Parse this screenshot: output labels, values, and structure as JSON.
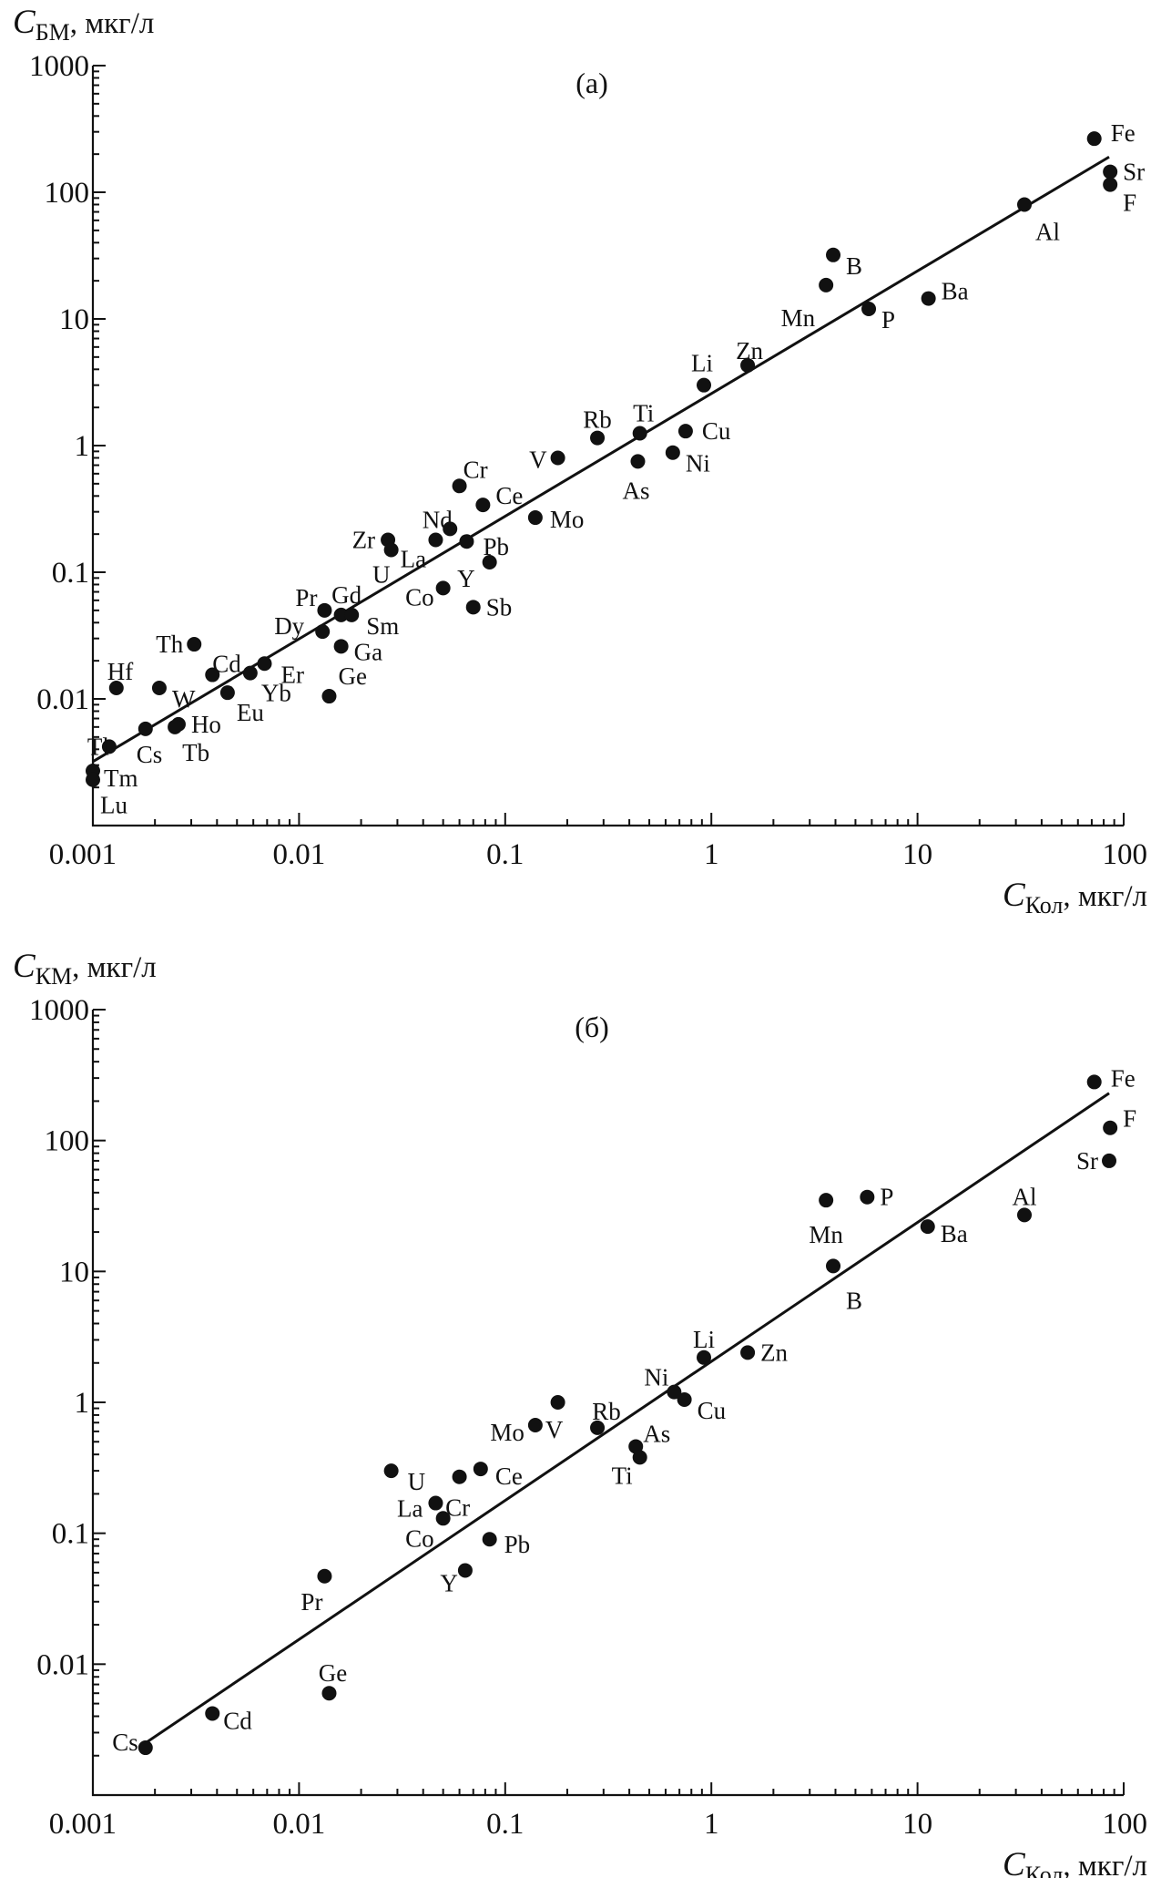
{
  "chart_data": [
    {
      "type": "scatter",
      "id": "a",
      "panel_label": "(а)",
      "scale": "log-log",
      "xlim": [
        0.001,
        100
      ],
      "ylim": [
        0.001,
        1000
      ],
      "x_ticks": [
        "0.001",
        "0.01",
        "0.1",
        "1",
        "10",
        "100"
      ],
      "y_ticks": [
        "0.01",
        "0.1",
        "1",
        "10",
        "100",
        "1000"
      ],
      "ylabel": {
        "symbol": "C",
        "sub": "БМ",
        "unit": ", мкг/л"
      },
      "xlabel": {
        "symbol": "C",
        "sub": "Кол",
        "unit": ", мкг/л"
      },
      "fit_line": {
        "x": [
          0.001,
          85
        ],
        "y": [
          0.0032,
          190
        ]
      },
      "points": [
        {
          "label": "Fe",
          "x": 72,
          "y": 265
        },
        {
          "label": "Sr",
          "x": 86,
          "y": 145
        },
        {
          "label": "F",
          "x": 86,
          "y": 115
        },
        {
          "label": "Al",
          "x": 33,
          "y": 80
        },
        {
          "label": "B",
          "x": 3.9,
          "y": 32
        },
        {
          "label": "Mn",
          "x": 3.6,
          "y": 18.5
        },
        {
          "label": "P",
          "x": 5.8,
          "y": 12
        },
        {
          "label": "Ba",
          "x": 11.3,
          "y": 14.5
        },
        {
          "label": "Zn",
          "x": 1.5,
          "y": 4.3
        },
        {
          "label": "Li",
          "x": 0.92,
          "y": 3
        },
        {
          "label": "Rb",
          "x": 0.28,
          "y": 1.15
        },
        {
          "label": "Ti",
          "x": 0.45,
          "y": 1.25
        },
        {
          "label": "Cu",
          "x": 0.75,
          "y": 1.3
        },
        {
          "label": "V",
          "x": 0.18,
          "y": 0.8
        },
        {
          "label": "As",
          "x": 0.44,
          "y": 0.75
        },
        {
          "label": "Ni",
          "x": 0.65,
          "y": 0.88
        },
        {
          "label": "Cr",
          "x": 0.06,
          "y": 0.48
        },
        {
          "label": "Ce",
          "x": 0.078,
          "y": 0.34
        },
        {
          "label": "Mo",
          "x": 0.14,
          "y": 0.27
        },
        {
          "label": "Nd",
          "x": 0.054,
          "y": 0.22
        },
        {
          "label": "Zr",
          "x": 0.027,
          "y": 0.18
        },
        {
          "label": "La",
          "x": 0.028,
          "y": 0.15
        },
        {
          "label": "Pb",
          "x": 0.065,
          "y": 0.175
        },
        {
          "label": "U",
          "x": 0.046,
          "y": 0.18
        },
        {
          "label": "Y",
          "x": 0.084,
          "y": 0.12
        },
        {
          "label": "Co",
          "x": 0.05,
          "y": 0.075
        },
        {
          "label": "Sb",
          "x": 0.07,
          "y": 0.053
        },
        {
          "label": "Pr",
          "x": 0.0133,
          "y": 0.05
        },
        {
          "label": "Gd",
          "x": 0.016,
          "y": 0.046
        },
        {
          "label": "Sm",
          "x": 0.018,
          "y": 0.046
        },
        {
          "label": "Dy",
          "x": 0.013,
          "y": 0.034
        },
        {
          "label": "Ga",
          "x": 0.016,
          "y": 0.026
        },
        {
          "label": "Ge",
          "x": 0.014,
          "y": 0.0105
        },
        {
          "label": "Th",
          "x": 0.0031,
          "y": 0.027
        },
        {
          "label": "Cd",
          "x": 0.0038,
          "y": 0.0155
        },
        {
          "label": "Er",
          "x": 0.0068,
          "y": 0.019
        },
        {
          "label": "Yb",
          "x": 0.0058,
          "y": 0.016
        },
        {
          "label": "Eu",
          "x": 0.0045,
          "y": 0.0112
        },
        {
          "label": "W",
          "x": 0.0021,
          "y": 0.0122
        },
        {
          "label": "Hf",
          "x": 0.0013,
          "y": 0.0122
        },
        {
          "label": "Ho",
          "x": 0.0026,
          "y": 0.0063
        },
        {
          "label": "Tb",
          "x": 0.0025,
          "y": 0.006
        },
        {
          "label": "Cs",
          "x": 0.0018,
          "y": 0.0058
        },
        {
          "label": "Tl",
          "x": 0.0012,
          "y": 0.0042
        },
        {
          "label": "Tm",
          "x": 0.001,
          "y": 0.0027
        },
        {
          "label": "Lu",
          "x": 0.001,
          "y": 0.0023
        }
      ]
    },
    {
      "type": "scatter",
      "id": "b",
      "panel_label": "(б)",
      "scale": "log-log",
      "xlim": [
        0.001,
        100
      ],
      "ylim": [
        0.001,
        1000
      ],
      "x_ticks": [
        "0.001",
        "0.01",
        "0.1",
        "1",
        "10",
        "100"
      ],
      "y_ticks": [
        "0.01",
        "0.1",
        "1",
        "10",
        "100",
        "1000"
      ],
      "ylabel": {
        "symbol": "C",
        "sub": "КМ",
        "unit": ", мкг/л"
      },
      "xlabel": {
        "symbol": "C",
        "sub": "Кол",
        "unit": ", мкг/л"
      },
      "fit_line": {
        "x": [
          0.0018,
          85
        ],
        "y": [
          0.0025,
          230
        ]
      },
      "points": [
        {
          "label": "Fe",
          "x": 72,
          "y": 280
        },
        {
          "label": "F",
          "x": 86,
          "y": 125
        },
        {
          "label": "Sr",
          "x": 85,
          "y": 70
        },
        {
          "label": "Al",
          "x": 33,
          "y": 27
        },
        {
          "label": "P",
          "x": 5.7,
          "y": 37
        },
        {
          "label": "Mn",
          "x": 3.6,
          "y": 35
        },
        {
          "label": "Ba",
          "x": 11.2,
          "y": 22
        },
        {
          "label": "B",
          "x": 3.9,
          "y": 11
        },
        {
          "label": "Zn",
          "x": 1.5,
          "y": 2.4
        },
        {
          "label": "Li",
          "x": 0.92,
          "y": 2.2
        },
        {
          "label": "Ni",
          "x": 0.66,
          "y": 1.2
        },
        {
          "label": "Cu",
          "x": 0.74,
          "y": 1.05
        },
        {
          "label": "V",
          "x": 0.18,
          "y": 1.0
        },
        {
          "label": "Mo",
          "x": 0.14,
          "y": 0.67
        },
        {
          "label": "Rb",
          "x": 0.28,
          "y": 0.64
        },
        {
          "label": "As",
          "x": 0.43,
          "y": 0.46
        },
        {
          "label": "Ti",
          "x": 0.45,
          "y": 0.38
        },
        {
          "label": "U",
          "x": 0.028,
          "y": 0.3
        },
        {
          "label": "Ce",
          "x": 0.076,
          "y": 0.31
        },
        {
          "label": "Cr",
          "x": 0.06,
          "y": 0.27
        },
        {
          "label": "La",
          "x": 0.046,
          "y": 0.17
        },
        {
          "label": "Co",
          "x": 0.05,
          "y": 0.13
        },
        {
          "label": "Pb",
          "x": 0.084,
          "y": 0.09
        },
        {
          "label": "Y",
          "x": 0.064,
          "y": 0.052
        },
        {
          "label": "Pr",
          "x": 0.0133,
          "y": 0.047
        },
        {
          "label": "Ge",
          "x": 0.014,
          "y": 0.006
        },
        {
          "label": "Cd",
          "x": 0.0038,
          "y": 0.0042
        },
        {
          "label": "Cs",
          "x": 0.0018,
          "y": 0.0023
        }
      ]
    }
  ]
}
